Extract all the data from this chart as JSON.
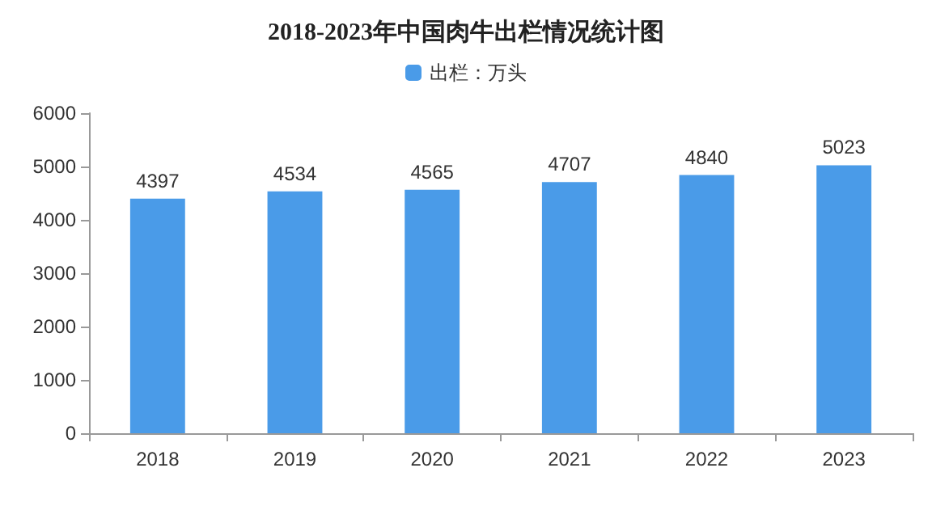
{
  "chart_data": {
    "type": "bar",
    "title": "2018-2023年中国肉牛出栏情况统计图",
    "categories": [
      "2018",
      "2019",
      "2020",
      "2021",
      "2022",
      "2023"
    ],
    "series": [
      {
        "name": "出栏：万头",
        "color": "#4a9be8",
        "values": [
          4397,
          4534,
          4565,
          4707,
          4840,
          5023
        ]
      }
    ],
    "ylim": [
      0,
      6000
    ],
    "yticks": [
      0,
      1000,
      2000,
      3000,
      4000,
      5000,
      6000
    ],
    "grid": false,
    "legend": "top",
    "data_labels": true
  }
}
